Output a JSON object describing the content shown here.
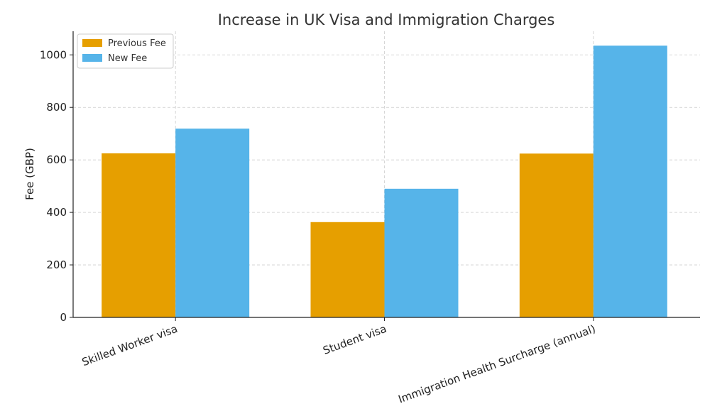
{
  "chart_data": {
    "type": "bar",
    "title": "Increase in UK Visa and Immigration Charges",
    "xlabel": "",
    "ylabel": "Fee (GBP)",
    "categories": [
      "Skilled Worker visa",
      "Student visa",
      "Immigration Health Surcharge (annual)"
    ],
    "series": [
      {
        "name": "Previous Fee",
        "color": "#E69F00",
        "values": [
          625,
          363,
          624
        ]
      },
      {
        "name": "New Fee",
        "color": "#56B4E9",
        "values": [
          719,
          490,
          1035
        ]
      }
    ],
    "ylim": [
      0,
      1090
    ],
    "yticks": [
      0,
      200,
      400,
      600,
      800,
      1000
    ],
    "grid": true,
    "legend": "top-left"
  }
}
